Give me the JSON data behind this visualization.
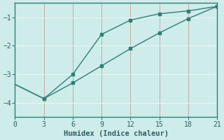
{
  "xlabel": "Humidex (Indice chaleur)",
  "bg_color": "#ceecea",
  "line_color": "#2e7f76",
  "grid_color_x": "#c4a8a8",
  "grid_color_y": "#e8f8f7",
  "line1_x": [
    0,
    3,
    6,
    9,
    12,
    15,
    18,
    21
  ],
  "line1_y": [
    -3.35,
    -3.85,
    -3.0,
    -1.6,
    -1.1,
    -0.88,
    -0.78,
    -0.62
  ],
  "line2_x": [
    0,
    3,
    6,
    9,
    12,
    15,
    18,
    21
  ],
  "line2_y": [
    -3.35,
    -3.85,
    -3.3,
    -2.7,
    -2.1,
    -1.55,
    -1.05,
    -0.62
  ],
  "mark1_idx": [
    1,
    2,
    3,
    4,
    5,
    6,
    7
  ],
  "mark2_idx": [],
  "xlim": [
    0,
    21
  ],
  "ylim": [
    -4.5,
    -0.5
  ],
  "xticks": [
    0,
    3,
    6,
    9,
    12,
    15,
    18,
    21
  ],
  "yticks": [
    -4,
    -3,
    -2,
    -1
  ],
  "tick_fontsize": 7,
  "xlabel_fontsize": 7.5,
  "marker_size": 3,
  "line_width": 1.0
}
